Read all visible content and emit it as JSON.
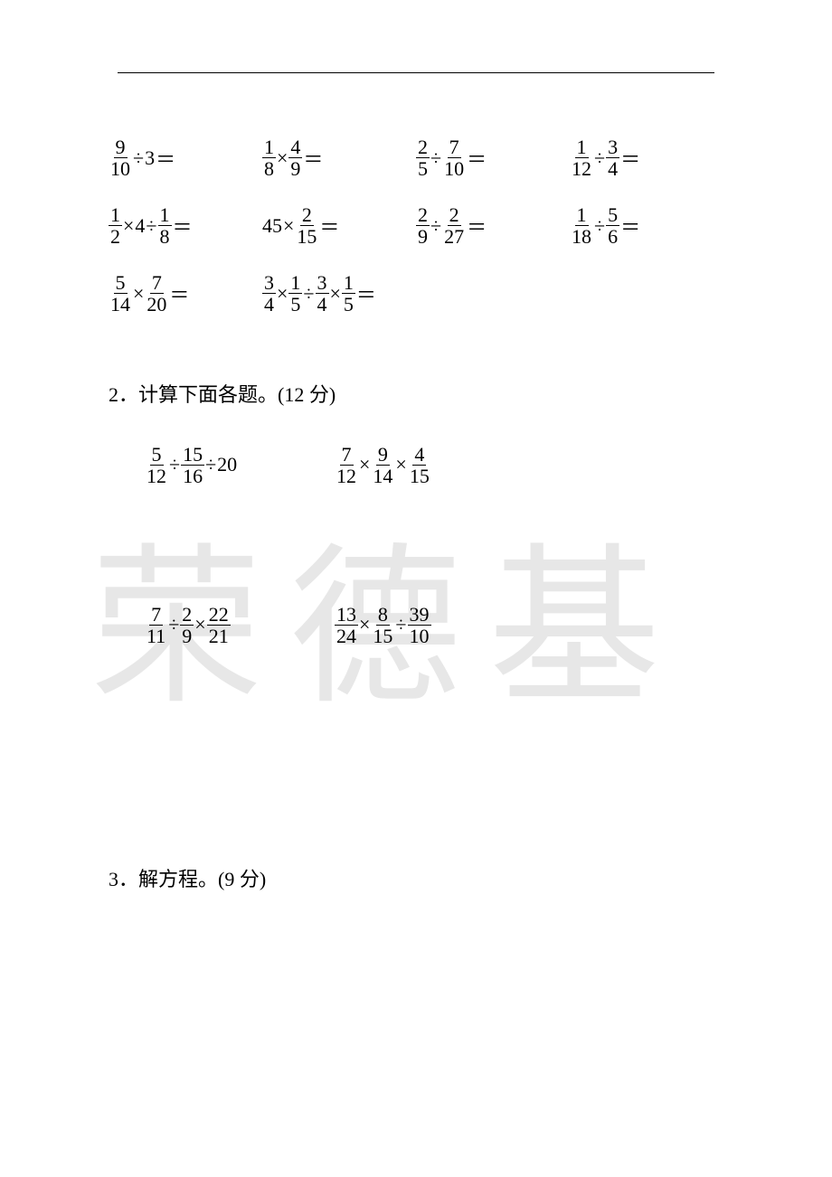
{
  "watermark": "荣德基",
  "mental": {
    "rows": [
      [
        [
          {
            "t": "frac",
            "n": "9",
            "d": "10"
          },
          {
            "t": "op",
            "v": "÷"
          },
          {
            "t": "txt",
            "v": "3"
          },
          {
            "t": "op",
            "v": "＝"
          }
        ],
        [
          {
            "t": "frac",
            "n": "1",
            "d": "8"
          },
          {
            "t": "op",
            "v": "×"
          },
          {
            "t": "frac",
            "n": "4",
            "d": "9"
          },
          {
            "t": "op",
            "v": "＝"
          }
        ],
        [
          {
            "t": "frac",
            "n": "2",
            "d": "5"
          },
          {
            "t": "op",
            "v": "÷"
          },
          {
            "t": "frac",
            "n": "7",
            "d": "10"
          },
          {
            "t": "op",
            "v": "＝"
          }
        ],
        [
          {
            "t": "frac",
            "n": "1",
            "d": "12"
          },
          {
            "t": "op",
            "v": "÷"
          },
          {
            "t": "frac",
            "n": "3",
            "d": "4"
          },
          {
            "t": "op",
            "v": "＝"
          }
        ]
      ],
      [
        [
          {
            "t": "frac",
            "n": "1",
            "d": "2"
          },
          {
            "t": "op",
            "v": "×"
          },
          {
            "t": "txt",
            "v": "4"
          },
          {
            "t": "op",
            "v": "÷"
          },
          {
            "t": "frac",
            "n": "1",
            "d": "8"
          },
          {
            "t": "op",
            "v": "＝"
          }
        ],
        [
          {
            "t": "txt",
            "v": "45"
          },
          {
            "t": "op",
            "v": "×"
          },
          {
            "t": "frac",
            "n": "2",
            "d": "15"
          },
          {
            "t": "op",
            "v": "＝"
          }
        ],
        [
          {
            "t": "frac",
            "n": "2",
            "d": "9"
          },
          {
            "t": "op",
            "v": "÷"
          },
          {
            "t": "frac",
            "n": "2",
            "d": "27"
          },
          {
            "t": "op",
            "v": "＝"
          }
        ],
        [
          {
            "t": "frac",
            "n": "1",
            "d": "18"
          },
          {
            "t": "op",
            "v": "÷"
          },
          {
            "t": "frac",
            "n": "5",
            "d": "6"
          },
          {
            "t": "op",
            "v": "＝"
          }
        ]
      ],
      [
        [
          {
            "t": "frac",
            "n": "5",
            "d": "14"
          },
          {
            "t": "op",
            "v": "×"
          },
          {
            "t": "frac",
            "n": "7",
            "d": "20"
          },
          {
            "t": "op",
            "v": "＝"
          }
        ],
        [
          {
            "t": "frac",
            "n": "3",
            "d": "4"
          },
          {
            "t": "op",
            "v": "×"
          },
          {
            "t": "frac",
            "n": "1",
            "d": "5"
          },
          {
            "t": "op",
            "v": "÷"
          },
          {
            "t": "frac",
            "n": "3",
            "d": "4"
          },
          {
            "t": "op",
            "v": "×"
          },
          {
            "t": "frac",
            "n": "1",
            "d": "5"
          },
          {
            "t": "op",
            "v": "＝"
          }
        ]
      ]
    ]
  },
  "section2": {
    "title": "2．计算下面各题。(12 分)",
    "rows": [
      [
        [
          {
            "t": "frac",
            "n": "5",
            "d": "12"
          },
          {
            "t": "op",
            "v": "÷"
          },
          {
            "t": "frac",
            "n": "15",
            "d": "16"
          },
          {
            "t": "op",
            "v": "÷"
          },
          {
            "t": "txt",
            "v": "20"
          }
        ],
        [
          {
            "t": "frac",
            "n": "7",
            "d": "12"
          },
          {
            "t": "op",
            "v": "×"
          },
          {
            "t": "frac",
            "n": "9",
            "d": "14"
          },
          {
            "t": "op",
            "v": "×"
          },
          {
            "t": "frac",
            "n": "4",
            "d": "15"
          }
        ]
      ],
      [
        [
          {
            "t": "frac",
            "n": "7",
            "d": "11"
          },
          {
            "t": "op",
            "v": "÷"
          },
          {
            "t": "frac",
            "n": "2",
            "d": "9"
          },
          {
            "t": "op",
            "v": "×"
          },
          {
            "t": "frac",
            "n": "22",
            "d": "21"
          }
        ],
        [
          {
            "t": "frac",
            "n": "13",
            "d": "24"
          },
          {
            "t": "op",
            "v": "×"
          },
          {
            "t": "frac",
            "n": "8",
            "d": "15"
          },
          {
            "t": "op",
            "v": "÷"
          },
          {
            "t": "frac",
            "n": "39",
            "d": "10"
          }
        ]
      ]
    ]
  },
  "section3": {
    "title": "3．解方程。(9 分)"
  }
}
